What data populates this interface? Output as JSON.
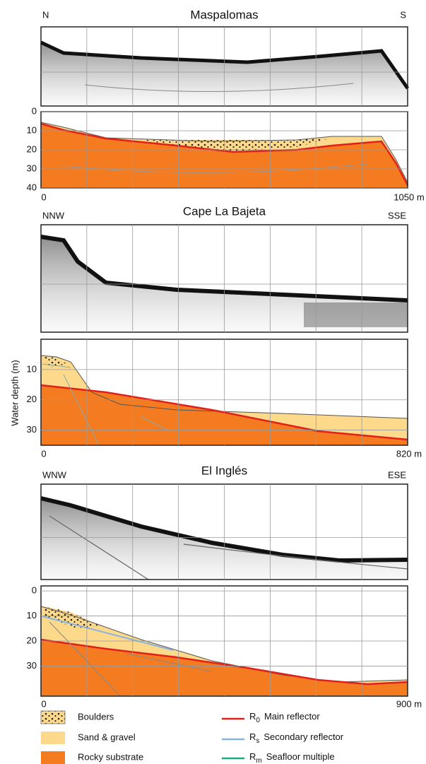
{
  "panels": [
    {
      "title": "Maspalomas",
      "left": "N",
      "right": "S",
      "yticks": [
        0,
        10,
        20,
        30,
        40
      ],
      "ylim": [
        0,
        40
      ],
      "x_start": "0",
      "x_end": "1050 m"
    },
    {
      "title": "Cape La Bajeta",
      "left": "NNW",
      "right": "SSE",
      "yticks": [
        10,
        20,
        30
      ],
      "ylim": [
        0,
        35
      ],
      "x_start": "0",
      "x_end": "820 m"
    },
    {
      "title": "El Inglés",
      "left": "WNW",
      "right": "ESE",
      "yticks": [
        0,
        10,
        20,
        30
      ],
      "ylim": [
        -2,
        42
      ],
      "x_start": "0",
      "x_end": "900 m"
    }
  ],
  "y_axis_label": "Water depth (m)",
  "legend": {
    "units": [
      "Boulders",
      "Sand & gravel",
      "Rocky substrate"
    ],
    "reflectors": [
      {
        "symbol": "R",
        "subscript": "0",
        "label": "Main reflector"
      },
      {
        "symbol": "R",
        "subscript": "s",
        "label": "Secondary reflector"
      },
      {
        "symbol": "R",
        "subscript": "m",
        "label": "Seafloor multiple"
      }
    ]
  }
}
